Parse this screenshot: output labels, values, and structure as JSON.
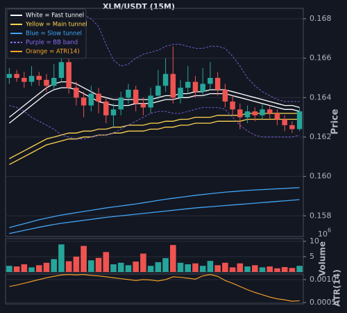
{
  "chart_data": [
    {
      "type": "candlestick",
      "title": "XLM/USDT (15M)",
      "ylabel": "Price",
      "ylim": [
        0.15695,
        0.16853
      ],
      "yticks": [
        0.158,
        {
          "value": 0.16,
          "label": "0.160"
        },
        0.162,
        0.164,
        0.166,
        0.168
      ],
      "grid": true,
      "legend": "upper left",
      "up_color": "#26a69a",
      "down_color": "#ef5350",
      "open": [
        0.165,
        0.1652,
        0.165,
        0.1648,
        0.1651,
        0.1649,
        0.1646,
        0.165,
        0.1658,
        0.1645,
        0.164,
        0.1636,
        0.1642,
        0.1638,
        0.1631,
        0.1634,
        0.164,
        0.1644,
        0.1637,
        0.1635,
        0.1641,
        0.1646,
        0.1652,
        0.164,
        0.1645,
        0.1648,
        0.1643,
        0.1647,
        0.165,
        0.1644,
        0.1638,
        0.1634,
        0.163,
        0.1633,
        0.1631,
        0.1634,
        0.1632,
        0.1629,
        0.1626,
        0.1624
      ],
      "high": [
        0.1655,
        0.1654,
        0.1653,
        0.1656,
        0.1653,
        0.1652,
        0.1657,
        0.1665,
        0.166,
        0.1648,
        0.1643,
        0.1646,
        0.1645,
        0.164,
        0.1637,
        0.1643,
        0.1647,
        0.1646,
        0.164,
        0.1645,
        0.1654,
        0.166,
        0.1666,
        0.1649,
        0.1656,
        0.1651,
        0.1655,
        0.1658,
        0.1653,
        0.1647,
        0.1641,
        0.1637,
        0.1636,
        0.1635,
        0.1637,
        0.1636,
        0.1634,
        0.1631,
        0.1628,
        0.1635
      ],
      "low": [
        0.1647,
        0.1648,
        0.1645,
        0.1646,
        0.1646,
        0.1643,
        0.1644,
        0.1648,
        0.1642,
        0.1636,
        0.163,
        0.1633,
        0.1632,
        0.1627,
        0.1625,
        0.1631,
        0.1637,
        0.1633,
        0.1631,
        0.1632,
        0.1639,
        0.1643,
        0.1637,
        0.1637,
        0.1642,
        0.164,
        0.1641,
        0.1644,
        0.1641,
        0.1635,
        0.1631,
        0.1624,
        0.1627,
        0.1628,
        0.1629,
        0.1629,
        0.1626,
        0.1623,
        0.1622,
        0.1623
      ],
      "close": [
        0.1652,
        0.165,
        0.1648,
        0.1651,
        0.1649,
        0.1646,
        0.165,
        0.1658,
        0.1645,
        0.164,
        0.1636,
        0.1642,
        0.1638,
        0.1631,
        0.1634,
        0.164,
        0.1644,
        0.1637,
        0.1635,
        0.1641,
        0.1646,
        0.1652,
        0.164,
        0.1645,
        0.1648,
        0.1643,
        0.1647,
        0.165,
        0.1644,
        0.1638,
        0.1634,
        0.163,
        0.1633,
        0.1631,
        0.1634,
        0.1632,
        0.1629,
        0.1626,
        0.1624,
        0.1633
      ],
      "series": [
        {
          "name": "White = Fast tunnel",
          "color": "#ffffff",
          "dashed": false,
          "upper": [
            0.163,
            0.1633,
            0.1636,
            0.1639,
            0.1642,
            0.1645,
            0.1647,
            0.1648,
            0.1648,
            0.1647,
            0.1645,
            0.1643,
            0.1641,
            0.164,
            0.1639,
            0.1639,
            0.1639,
            0.1639,
            0.1639,
            0.1639,
            0.164,
            0.1641,
            0.1641,
            0.1642,
            0.1642,
            0.1643,
            0.1643,
            0.1644,
            0.1644,
            0.1644,
            0.1643,
            0.1642,
            0.1641,
            0.164,
            0.1639,
            0.1638,
            0.1637,
            0.1636,
            0.1636,
            0.1635
          ],
          "lower": [
            0.1627,
            0.163,
            0.1633,
            0.1636,
            0.1639,
            0.1642,
            0.1644,
            0.1645,
            0.1645,
            0.1644,
            0.1642,
            0.164,
            0.1638,
            0.1637,
            0.1636,
            0.1636,
            0.1636,
            0.1637,
            0.1637,
            0.1637,
            0.1638,
            0.1639,
            0.1639,
            0.164,
            0.164,
            0.1641,
            0.1641,
            0.1642,
            0.1642,
            0.1642,
            0.1641,
            0.164,
            0.1639,
            0.1638,
            0.1637,
            0.1636,
            0.1635,
            0.1634,
            0.1634,
            0.1633
          ]
        },
        {
          "name": "Yellow = Main tunnel",
          "color": "#ffd54f",
          "dashed": false,
          "upper": [
            0.1609,
            0.1611,
            0.1613,
            0.1615,
            0.1617,
            0.1619,
            0.162,
            0.1621,
            0.1622,
            0.1622,
            0.1623,
            0.1623,
            0.1624,
            0.1624,
            0.1625,
            0.1625,
            0.1626,
            0.1626,
            0.1626,
            0.1627,
            0.1627,
            0.1628,
            0.1628,
            0.1629,
            0.1629,
            0.163,
            0.163,
            0.163,
            0.1631,
            0.1631,
            0.1631,
            0.1631,
            0.1632,
            0.1632,
            0.1632,
            0.1632,
            0.1632,
            0.1632,
            0.1632,
            0.1632
          ],
          "lower": [
            0.1606,
            0.1608,
            0.161,
            0.1612,
            0.1614,
            0.1616,
            0.1617,
            0.1618,
            0.1619,
            0.1619,
            0.162,
            0.162,
            0.1621,
            0.1621,
            0.1622,
            0.1622,
            0.1623,
            0.1623,
            0.1623,
            0.1624,
            0.1624,
            0.1625,
            0.1625,
            0.1626,
            0.1626,
            0.1627,
            0.1627,
            0.1627,
            0.1628,
            0.1628,
            0.1628,
            0.1628,
            0.1629,
            0.1629,
            0.1629,
            0.1629,
            0.1629,
            0.1629,
            0.1629,
            0.1629
          ]
        },
        {
          "name": "Blue = Slow tunnel",
          "color": "#42a5f5",
          "dashed": false,
          "upper": [
            0.1574,
            0.1575,
            0.1576,
            0.1577,
            0.1578,
            0.15788,
            0.15796,
            0.15804,
            0.1581,
            0.15816,
            0.15822,
            0.15828,
            0.15834,
            0.1584,
            0.15845,
            0.1585,
            0.15855,
            0.1586,
            0.15866,
            0.15872,
            0.15878,
            0.15884,
            0.15889,
            0.15894,
            0.15899,
            0.15904,
            0.15908,
            0.15912,
            0.15916,
            0.1592,
            0.15923,
            0.15926,
            0.15929,
            0.15931,
            0.15933,
            0.15935,
            0.15937,
            0.15939,
            0.15941,
            0.15943
          ],
          "lower": [
            0.1571,
            0.15718,
            0.15726,
            0.15734,
            0.15742,
            0.15749,
            0.15756,
            0.15762,
            0.15767,
            0.15772,
            0.15777,
            0.15782,
            0.15787,
            0.15792,
            0.15796,
            0.158,
            0.15804,
            0.15808,
            0.15812,
            0.15816,
            0.1582,
            0.15824,
            0.15828,
            0.15832,
            0.15836,
            0.1584,
            0.15843,
            0.15846,
            0.15849,
            0.15852,
            0.15855,
            0.15858,
            0.15861,
            0.15864,
            0.15867,
            0.1587,
            0.15873,
            0.15876,
            0.15879,
            0.15882
          ]
        },
        {
          "name": "Purple = BB band",
          "color": "#8c6cf2",
          "dashed": true,
          "upper": [
            0.166,
            0.1661,
            0.1665,
            0.1672,
            0.1678,
            0.1682,
            0.1683,
            0.1683,
            0.1684,
            0.1683,
            0.1682,
            0.168,
            0.1676,
            0.1667,
            0.1659,
            0.1656,
            0.1657,
            0.166,
            0.1662,
            0.1663,
            0.1664,
            0.1666,
            0.1667,
            0.1667,
            0.1666,
            0.1665,
            0.1665,
            0.1666,
            0.1666,
            0.1665,
            0.1661,
            0.1656,
            0.165,
            0.1646,
            0.1643,
            0.1641,
            0.1639,
            0.1638,
            0.1638,
            0.1638
          ],
          "lower": [
            0.1636,
            0.1635,
            0.1633,
            0.163,
            0.1628,
            0.1626,
            0.1624,
            0.1621,
            0.162,
            0.1619,
            0.1619,
            0.162,
            0.1621,
            0.1621,
            0.1622,
            0.1624,
            0.1626,
            0.1628,
            0.163,
            0.1632,
            0.1633,
            0.1633,
            0.1632,
            0.1632,
            0.1633,
            0.1634,
            0.1635,
            0.1635,
            0.1635,
            0.1634,
            0.163,
            0.1626,
            0.1623,
            0.1621,
            0.162,
            0.162,
            0.162,
            0.162,
            0.162,
            0.1621
          ]
        }
      ]
    },
    {
      "type": "bar",
      "ylabel": "Volume",
      "offset_base": "10",
      "offset_exponent": "6",
      "ylim": [
        0,
        10.9
      ],
      "yticks": [
        5,
        10
      ],
      "grid": true,
      "values": [
        2.0,
        1.8,
        2.5,
        1.5,
        2.2,
        3.0,
        4.2,
        9.0,
        3.5,
        5.0,
        8.5,
        3.8,
        4.6,
        6.5,
        2.5,
        3.0,
        2.2,
        3.4,
        6.0,
        2.0,
        3.2,
        4.5,
        8.8,
        3.0,
        2.5,
        2.8,
        2.0,
        3.6,
        2.2,
        3.0,
        1.5,
        2.8,
        1.8,
        2.2,
        1.5,
        1.8,
        1.2,
        1.6,
        1.3,
        2.0
      ]
    },
    {
      "type": "line",
      "ylabel": "ATR(14)",
      "ylim": [
        0.00047,
        0.00112
      ],
      "yticks": [
        0.0005,
        {
          "value": 0.001,
          "label": "0.0010"
        }
      ],
      "grid": true,
      "series": [
        {
          "name": "Orange = ATR(14)",
          "color": "#ffa726",
          "values": [
            0.00085,
            0.00088,
            0.00092,
            0.00096,
            0.001,
            0.00104,
            0.00107,
            0.0011,
            0.00111,
            0.0011,
            0.00111,
            0.00109,
            0.00108,
            0.00106,
            0.00104,
            0.00102,
            0.001,
            0.00098,
            0.001,
            0.00099,
            0.00097,
            0.001,
            0.00106,
            0.00105,
            0.00103,
            0.00101,
            0.00108,
            0.00111,
            0.00107,
            0.00098,
            0.00092,
            0.00085,
            0.00078,
            0.00072,
            0.00067,
            0.00062,
            0.00058,
            0.00056,
            0.00053,
            0.00054
          ]
        }
      ]
    }
  ]
}
